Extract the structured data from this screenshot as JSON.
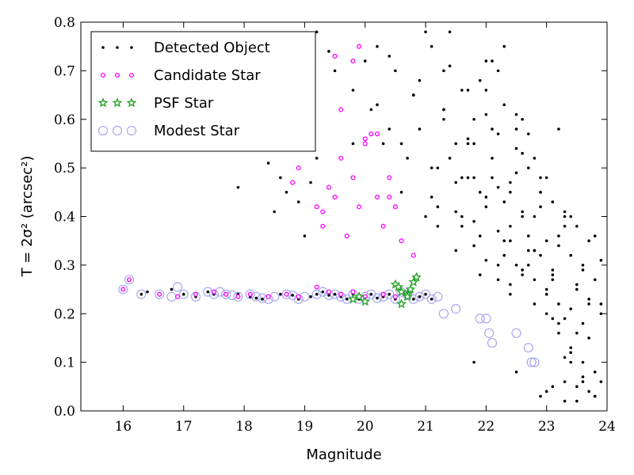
{
  "chart_data": {
    "type": "scatter",
    "xlabel": "Magnitude",
    "ylabel": "T = 2σ² (arcsec²)",
    "xlim": [
      15.3,
      24
    ],
    "ylim": [
      0.0,
      0.8
    ],
    "xticks": [
      16,
      17,
      18,
      19,
      20,
      21,
      22,
      23,
      24
    ],
    "yticks": [
      0.0,
      0.1,
      0.2,
      0.3,
      0.4,
      0.5,
      0.6,
      0.7,
      0.8
    ],
    "legend_position": "top-left",
    "series": [
      {
        "name": "Detected Object",
        "color": "#000000",
        "marker": "dot",
        "x": [
          16.3,
          16.4,
          16.6,
          16.8,
          16.9,
          17.0,
          17.2,
          17.4,
          17.5,
          17.7,
          17.9,
          18.1,
          18.2,
          18.3,
          18.4,
          18.6,
          18.8,
          18.9,
          19.1,
          19.2,
          19.3,
          19.4,
          19.5,
          19.6,
          19.7,
          19.8,
          19.9,
          20.0,
          20.1,
          20.2,
          20.3,
          20.4,
          20.5,
          20.6,
          20.7,
          20.8,
          20.9,
          21.0,
          21.1,
          17.9,
          18.4,
          18.5,
          18.6,
          18.7,
          18.9,
          19.0,
          19.1,
          19.2,
          19.4,
          19.6,
          19.8,
          20.0,
          20.2,
          20.4,
          20.6,
          20.8,
          21.0,
          21.2,
          21.3,
          21.5,
          21.7,
          21.9,
          22.1,
          22.3,
          22.5,
          22.7,
          22.9,
          23.1,
          23.3,
          23.5,
          23.7,
          19.2,
          19.5,
          19.8,
          20.1,
          20.3,
          20.5,
          20.7,
          20.9,
          21.1,
          21.3,
          21.4,
          21.6,
          21.8,
          22.0,
          22.2,
          22.4,
          22.6,
          22.8,
          23.0,
          23.2,
          23.4,
          23.6,
          23.8,
          23.9,
          20.2,
          20.4,
          20.6,
          20.8,
          21.0,
          21.2,
          21.4,
          21.6,
          21.8,
          22.0,
          22.2,
          22.4,
          22.6,
          22.8,
          23.0,
          23.2,
          23.4,
          23.6,
          23.8,
          20.9,
          21.1,
          21.3,
          21.5,
          21.7,
          21.9,
          22.1,
          22.3,
          22.5,
          22.7,
          22.9,
          23.1,
          23.3,
          23.5,
          23.7,
          21.1,
          21.3,
          21.5,
          21.7,
          21.9,
          22.1,
          22.3,
          22.5,
          22.7,
          22.9,
          23.1,
          23.3,
          23.5,
          23.7,
          23.9,
          21.2,
          21.4,
          21.6,
          21.8,
          22.0,
          22.2,
          22.4,
          22.6,
          22.8,
          23.0,
          23.2,
          23.4,
          23.6,
          21.5,
          21.7,
          21.9,
          22.1,
          22.3,
          22.5,
          22.7,
          22.9,
          23.1,
          23.3,
          23.5,
          23.7,
          21.6,
          21.8,
          22.0,
          22.2,
          22.4,
          22.6,
          22.8,
          23.0,
          23.2,
          23.4,
          21.8,
          22.0,
          22.2,
          22.4,
          22.6,
          22.8,
          23.0,
          23.2,
          23.4,
          23.6,
          23.8,
          22.0,
          22.2,
          22.4,
          22.6,
          22.8,
          23.0,
          23.2,
          23.4,
          23.6,
          22.3,
          22.5,
          22.7,
          22.9,
          23.1,
          23.3,
          23.5,
          23.7,
          22.9,
          23.0,
          23.1,
          23.3,
          23.5,
          23.6,
          23.8,
          23.9,
          21.8,
          22.5,
          23.3,
          23.9
        ],
        "y": [
          0.24,
          0.245,
          0.24,
          0.25,
          0.235,
          0.24,
          0.235,
          0.245,
          0.24,
          0.238,
          0.24,
          0.235,
          0.232,
          0.23,
          0.235,
          0.24,
          0.238,
          0.23,
          0.235,
          0.24,
          0.245,
          0.238,
          0.24,
          0.235,
          0.23,
          0.24,
          0.23,
          0.235,
          0.24,
          0.232,
          0.235,
          0.24,
          0.23,
          0.245,
          0.238,
          0.23,
          0.235,
          0.24,
          0.23,
          0.46,
          0.51,
          0.41,
          0.48,
          0.45,
          0.43,
          0.36,
          0.47,
          0.52,
          0.74,
          0.62,
          0.55,
          0.72,
          0.75,
          0.58,
          0.45,
          0.65,
          0.4,
          0.38,
          0.6,
          0.55,
          0.48,
          0.68,
          0.72,
          0.63,
          0.58,
          0.5,
          0.45,
          0.43,
          0.4,
          0.38,
          0.35,
          0.78,
          0.7,
          0.66,
          0.62,
          0.55,
          0.7,
          0.52,
          0.68,
          0.75,
          0.62,
          0.78,
          0.66,
          0.48,
          0.72,
          0.7,
          0.45,
          0.6,
          0.52,
          0.35,
          0.58,
          0.4,
          0.3,
          0.36,
          0.31,
          0.63,
          0.73,
          0.55,
          0.65,
          0.78,
          0.5,
          0.71,
          0.4,
          0.6,
          0.42,
          0.57,
          0.38,
          0.53,
          0.33,
          0.48,
          0.36,
          0.32,
          0.29,
          0.27,
          0.58,
          0.44,
          0.7,
          0.47,
          0.55,
          0.36,
          0.52,
          0.32,
          0.49,
          0.3,
          0.45,
          0.28,
          0.41,
          0.25,
          0.23,
          0.5,
          0.62,
          0.41,
          0.66,
          0.45,
          0.58,
          0.35,
          0.54,
          0.33,
          0.42,
          0.29,
          0.38,
          0.26,
          0.22,
          0.2,
          0.42,
          0.52,
          0.48,
          0.39,
          0.61,
          0.37,
          0.47,
          0.28,
          0.4,
          0.24,
          0.34,
          0.21,
          0.18,
          0.33,
          0.56,
          0.28,
          0.48,
          0.43,
          0.3,
          0.36,
          0.32,
          0.27,
          0.19,
          0.16,
          0.15,
          0.38,
          0.34,
          0.44,
          0.3,
          0.26,
          0.41,
          0.27,
          0.24,
          0.22,
          0.13,
          0.55,
          0.31,
          0.27,
          0.35,
          0.29,
          0.22,
          0.2,
          0.16,
          0.12,
          0.1,
          0.08,
          0.66,
          0.46,
          0.24,
          0.4,
          0.33,
          0.25,
          0.18,
          0.1,
          0.06,
          0.75,
          0.61,
          0.57,
          0.48,
          0.19,
          0.11,
          0.05,
          0.04,
          0.03,
          0.04,
          0.05,
          0.06,
          0.02,
          0.07,
          0.03,
          0.06,
          0.1,
          0.08,
          0.02,
          0.22
        ]
      },
      {
        "name": "Candidate Star",
        "color": "#ff00ff",
        "marker": "small-circle",
        "x": [
          16.0,
          16.1,
          16.6,
          16.9,
          17.2,
          17.5,
          17.7,
          17.9,
          18.1,
          18.4,
          18.7,
          18.9,
          19.2,
          19.4,
          19.6,
          19.8,
          20.0,
          20.3,
          20.5,
          20.7,
          18.8,
          18.9,
          19.0,
          19.2,
          19.3,
          19.4,
          19.5,
          19.6,
          19.7,
          19.8,
          19.9,
          20.0,
          20.1,
          20.2,
          20.3,
          20.4,
          20.5,
          20.6,
          20.8,
          19.5,
          19.8,
          19.9,
          20.0,
          20.2,
          20.4,
          19.3,
          19.6
        ],
        "y": [
          0.25,
          0.27,
          0.24,
          0.235,
          0.24,
          0.245,
          0.24,
          0.235,
          0.24,
          0.235,
          0.24,
          0.235,
          0.255,
          0.245,
          0.24,
          0.245,
          0.235,
          0.24,
          0.235,
          0.24,
          0.47,
          0.5,
          0.54,
          0.42,
          0.38,
          0.46,
          0.44,
          0.52,
          0.36,
          0.48,
          0.42,
          0.55,
          0.57,
          0.44,
          0.38,
          0.48,
          0.42,
          0.35,
          0.32,
          0.73,
          0.72,
          0.75,
          0.56,
          0.57,
          0.44,
          0.41,
          0.62
        ]
      },
      {
        "name": "PSF Star",
        "color": "#22a022",
        "marker": "star",
        "x": [
          19.8,
          19.9,
          20.0,
          20.5,
          20.6,
          20.7,
          20.75,
          20.8,
          20.85,
          20.6,
          20.55,
          20.7
        ],
        "y": [
          0.23,
          0.235,
          0.225,
          0.26,
          0.245,
          0.24,
          0.25,
          0.265,
          0.275,
          0.22,
          0.255,
          0.235
        ]
      },
      {
        "name": "Modest Star",
        "color": "#a8a8f0",
        "marker": "open-circle",
        "x": [
          16.0,
          16.1,
          16.3,
          16.6,
          16.8,
          16.9,
          17.0,
          17.2,
          17.4,
          17.5,
          17.6,
          17.7,
          17.8,
          17.9,
          18.1,
          18.2,
          18.3,
          18.4,
          18.5,
          18.7,
          18.8,
          18.9,
          19.0,
          19.2,
          19.3,
          19.4,
          19.5,
          19.6,
          19.7,
          19.8,
          19.9,
          20.0,
          20.1,
          20.2,
          20.3,
          20.4,
          20.5,
          20.6,
          20.7,
          20.8,
          20.9,
          21.0,
          21.1,
          21.2,
          21.3,
          21.5,
          21.9,
          22.0,
          22.05,
          22.1,
          22.5,
          22.7,
          22.75,
          22.8
        ],
        "y": [
          0.25,
          0.27,
          0.24,
          0.24,
          0.235,
          0.255,
          0.24,
          0.235,
          0.245,
          0.24,
          0.245,
          0.24,
          0.238,
          0.235,
          0.24,
          0.235,
          0.232,
          0.23,
          0.235,
          0.24,
          0.238,
          0.23,
          0.235,
          0.24,
          0.245,
          0.238,
          0.24,
          0.235,
          0.23,
          0.24,
          0.23,
          0.235,
          0.24,
          0.232,
          0.235,
          0.24,
          0.23,
          0.245,
          0.238,
          0.23,
          0.235,
          0.24,
          0.23,
          0.235,
          0.2,
          0.21,
          0.19,
          0.19,
          0.16,
          0.14,
          0.16,
          0.13,
          0.1,
          0.1
        ]
      }
    ]
  }
}
